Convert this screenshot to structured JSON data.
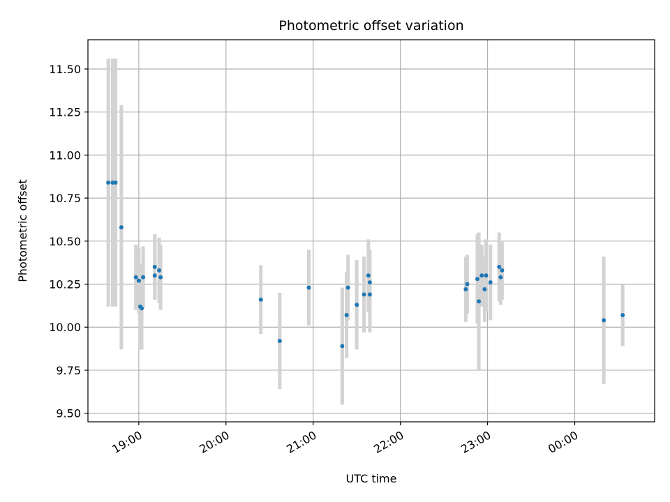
{
  "chart_data": {
    "type": "scatter",
    "title": "Photometric offset variation",
    "xlabel": "UTC time",
    "ylabel": "Photometric offset",
    "x_unit": "UTC time (HH:MM, spanning midnight)",
    "x_range": [
      "18:25",
      "00:55"
    ],
    "ylim": [
      9.45,
      11.67
    ],
    "yticks": [
      9.5,
      9.75,
      10.0,
      10.25,
      10.5,
      10.75,
      11.0,
      11.25,
      11.5
    ],
    "ytick_labels": [
      "9.50",
      "9.75",
      "10.00",
      "10.25",
      "10.50",
      "10.75",
      "11.00",
      "11.25",
      "11.50"
    ],
    "xticks": [
      "19:00",
      "20:00",
      "21:00",
      "22:00",
      "23:00",
      "00:00"
    ],
    "xtick_labels": [
      "19:00",
      "20:00",
      "21:00",
      "22:00",
      "23:00",
      "00:00"
    ],
    "grid": true,
    "legend": "none",
    "colors": {
      "point": "#1f77b4",
      "errorbar": "#d3d3d3",
      "grid": "#b0b0b0",
      "axis": "#000000"
    },
    "points": [
      {
        "time": "18:39",
        "y": 10.84,
        "err": 0.72
      },
      {
        "time": "18:42",
        "y": 10.84,
        "err": 0.72
      },
      {
        "time": "18:44",
        "y": 10.84,
        "err": 0.72
      },
      {
        "time": "18:48",
        "y": 10.58,
        "err": 0.71
      },
      {
        "time": "18:58",
        "y": 10.29,
        "err": 0.19
      },
      {
        "time": "19:00",
        "y": 10.27,
        "err": 0.19
      },
      {
        "time": "19:01",
        "y": 10.12,
        "err": 0.25
      },
      {
        "time": "19:02",
        "y": 10.11,
        "err": 0.24
      },
      {
        "time": "19:03",
        "y": 10.29,
        "err": 0.18
      },
      {
        "time": "19:11",
        "y": 10.35,
        "err": 0.19
      },
      {
        "time": "19:11",
        "y": 10.3,
        "err": 0.14
      },
      {
        "time": "19:14",
        "y": 10.33,
        "err": 0.19
      },
      {
        "time": "19:15",
        "y": 10.29,
        "err": 0.19
      },
      {
        "time": "20:24",
        "y": 10.16,
        "err": 0.2
      },
      {
        "time": "20:37",
        "y": 9.92,
        "err": 0.28
      },
      {
        "time": "20:57",
        "y": 10.23,
        "err": 0.22
      },
      {
        "time": "21:20",
        "y": 9.89,
        "err": 0.34
      },
      {
        "time": "21:23",
        "y": 10.07,
        "err": 0.25
      },
      {
        "time": "21:24",
        "y": 10.23,
        "err": 0.19
      },
      {
        "time": "21:30",
        "y": 10.13,
        "err": 0.26
      },
      {
        "time": "21:35",
        "y": 10.19,
        "err": 0.22
      },
      {
        "time": "21:38",
        "y": 10.3,
        "err": 0.21
      },
      {
        "time": "21:39",
        "y": 10.19,
        "err": 0.22
      },
      {
        "time": "21:39",
        "y": 10.26,
        "err": 0.19
      },
      {
        "time": "22:45",
        "y": 10.22,
        "err": 0.19
      },
      {
        "time": "22:46",
        "y": 10.25,
        "err": 0.17
      },
      {
        "time": "22:53",
        "y": 10.28,
        "err": 0.26
      },
      {
        "time": "22:54",
        "y": 10.15,
        "err": 0.4
      },
      {
        "time": "22:56",
        "y": 10.3,
        "err": 0.18
      },
      {
        "time": "22:58",
        "y": 10.22,
        "err": 0.19
      },
      {
        "time": "22:59",
        "y": 10.3,
        "err": 0.21
      },
      {
        "time": "23:02",
        "y": 10.26,
        "err": 0.22
      },
      {
        "time": "23:08",
        "y": 10.35,
        "err": 0.2
      },
      {
        "time": "23:09",
        "y": 10.29,
        "err": 0.16
      },
      {
        "time": "23:10",
        "y": 10.33,
        "err": 0.17
      },
      {
        "time": "00:20",
        "y": 10.04,
        "err": 0.37
      },
      {
        "time": "00:33",
        "y": 10.07,
        "err": 0.18
      }
    ]
  }
}
